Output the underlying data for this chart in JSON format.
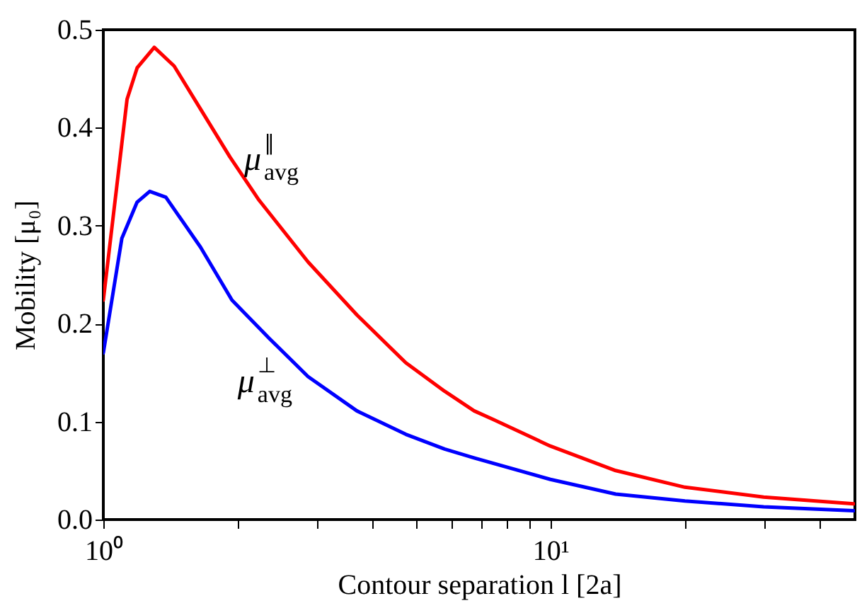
{
  "chart_data": {
    "type": "line",
    "xlabel": "Contour separation l [2a]",
    "ylabel": "Mobility [μ₀]",
    "log": "x",
    "xlim": [
      1,
      48
    ],
    "ylim": [
      0,
      0.5
    ],
    "xticks": [
      {
        "value": 1,
        "label": "10⁰"
      },
      {
        "value": 2,
        "label": null
      },
      {
        "value": 3,
        "label": null
      },
      {
        "value": 4,
        "label": null
      },
      {
        "value": 5,
        "label": null
      },
      {
        "value": 6,
        "label": null
      },
      {
        "value": 7,
        "label": null
      },
      {
        "value": 8,
        "label": null
      },
      {
        "value": 9,
        "label": null
      },
      {
        "value": 10,
        "label": "10¹"
      },
      {
        "value": 20,
        "label": null
      },
      {
        "value": 30,
        "label": null
      },
      {
        "value": 40,
        "label": null
      }
    ],
    "yticks": [
      {
        "value": 0,
        "label": "0.0"
      },
      {
        "value": 0.1,
        "label": "0.1"
      },
      {
        "value": 0.2,
        "label": "0.2"
      },
      {
        "value": 0.3,
        "label": "0.3"
      },
      {
        "value": 0.4,
        "label": "0.4"
      },
      {
        "value": 0.5,
        "label": "0.5"
      }
    ],
    "grid": false,
    "marker": "none",
    "line_style": "solid",
    "series": [
      {
        "name": "μ$^{∥}$$_{avg}$",
        "color": "#ff0000",
        "x": [
          1,
          1.13,
          1.19,
          1.3,
          1.44,
          1.65,
          1.92,
          2.23,
          2.87,
          3.69,
          4.75,
          5.8,
          6.75,
          7.46,
          10,
          14,
          20,
          30,
          47.7
        ],
        "values": [
          0.224,
          0.429,
          0.461,
          0.482,
          0.463,
          0.419,
          0.37,
          0.326,
          0.263,
          0.209,
          0.16,
          0.131,
          0.111,
          0.102,
          0.075,
          0.05,
          0.033,
          0.023,
          0.016
        ]
      },
      {
        "name": "μ$^{⊥}$$_{avg}$",
        "color": "#0000ff",
        "x": [
          1,
          1.1,
          1.19,
          1.27,
          1.38,
          1.65,
          1.94,
          2.35,
          2.87,
          3.69,
          4.75,
          5.8,
          6.75,
          10,
          14,
          20,
          30,
          47.7
        ],
        "values": [
          0.17,
          0.287,
          0.324,
          0.335,
          0.329,
          0.278,
          0.224,
          0.185,
          0.146,
          0.111,
          0.087,
          0.072,
          0.063,
          0.041,
          0.026,
          0.019,
          0.013,
          0.009
        ]
      }
    ]
  }
}
